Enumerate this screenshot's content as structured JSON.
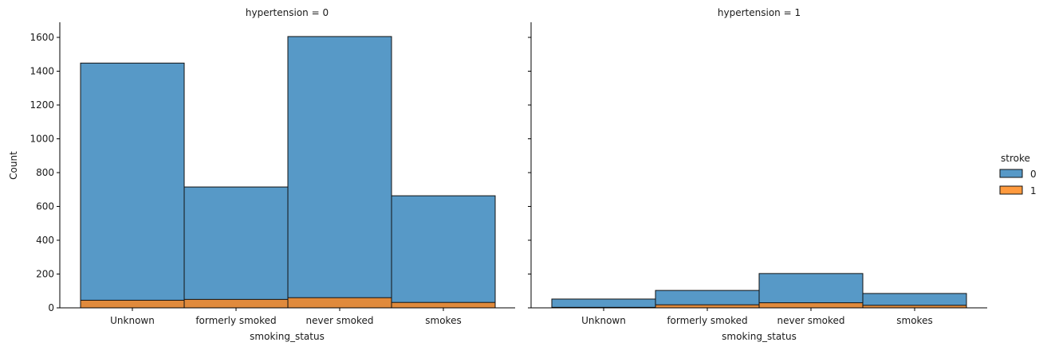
{
  "chart_data": {
    "type": "bar",
    "stacked": "layered",
    "ylabel": "Count",
    "ylim": [
      0,
      1680
    ],
    "yticks": [
      0,
      200,
      400,
      600,
      800,
      1000,
      1200,
      1400,
      1600
    ],
    "categories": [
      "Unknown",
      "formerly smoked",
      "never smoked",
      "smokes"
    ],
    "legend": {
      "title": "stroke",
      "placement": "right",
      "entries": [
        {
          "label": "0",
          "color": "#1f77b4"
        },
        {
          "label": "1",
          "color": "#ff7f0e"
        }
      ]
    },
    "facets": [
      {
        "title": "hypertension = 0",
        "xlabel": "smoking_status",
        "series": [
          {
            "name": "0",
            "values": [
              1448,
              715,
              1605,
              663
            ]
          },
          {
            "name": "1",
            "values": [
              45,
              50,
              60,
              32
            ]
          }
        ]
      },
      {
        "title": "hypertension = 1",
        "xlabel": "smoking_status",
        "series": [
          {
            "name": "0",
            "values": [
              52,
              103,
              203,
              85
            ]
          },
          {
            "name": "1",
            "values": [
              3,
              18,
              30,
              15
            ]
          }
        ]
      }
    ]
  }
}
